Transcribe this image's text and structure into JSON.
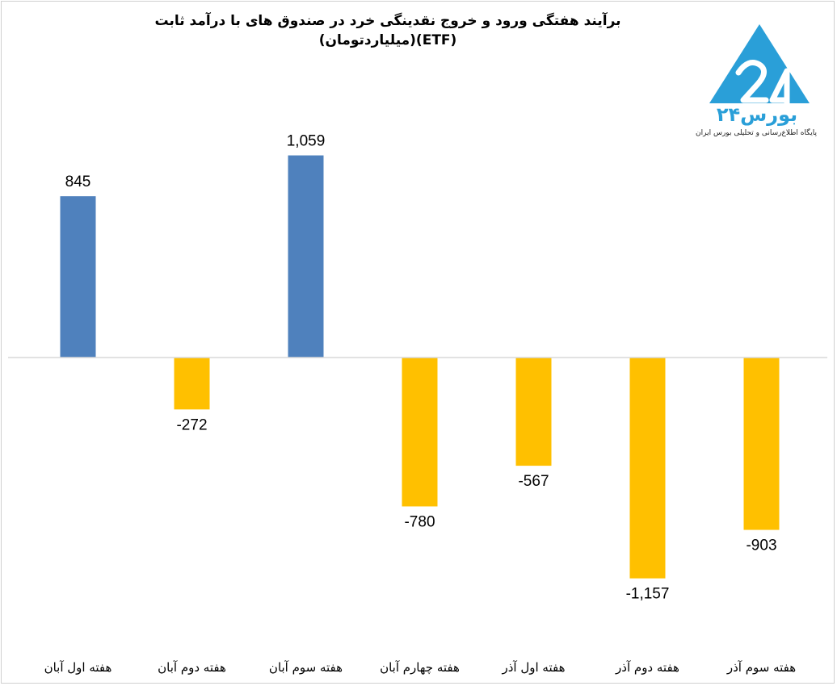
{
  "chart_data": {
    "type": "bar",
    "title": "برآیند هفتگی ورود و خروج نقدینگی خرد در صندوق های با درآمد ثابت",
    "subtitle": "(ETF)(میلیاردتومان)",
    "xlabel": "",
    "ylabel": "",
    "categories": [
      "هفته اول آبان",
      "هفته دوم آبان",
      "هفته سوم آبان",
      "هفته چهارم آبان",
      "هفته اول آذر",
      "هفته دوم آذر",
      "هفته سوم آذر"
    ],
    "values": [
      845,
      -272,
      1059,
      -780,
      -567,
      -1157,
      -903
    ],
    "value_labels": [
      "845",
      "-272",
      "1,059",
      "-780",
      "-567",
      "-1,157",
      "-903"
    ],
    "ylim": [
      -1300,
      1200
    ],
    "grid": false,
    "legend": "none",
    "colors": {
      "positive": "#4f81bd",
      "negative": "#ffc000",
      "axis": "#d9d9d9"
    }
  },
  "logo": {
    "name": "بورس۲۴",
    "tagline": "پایگاه اطلاع‌رسانی و تحلیلی بورس ایران",
    "color": "#2a9fd8"
  }
}
